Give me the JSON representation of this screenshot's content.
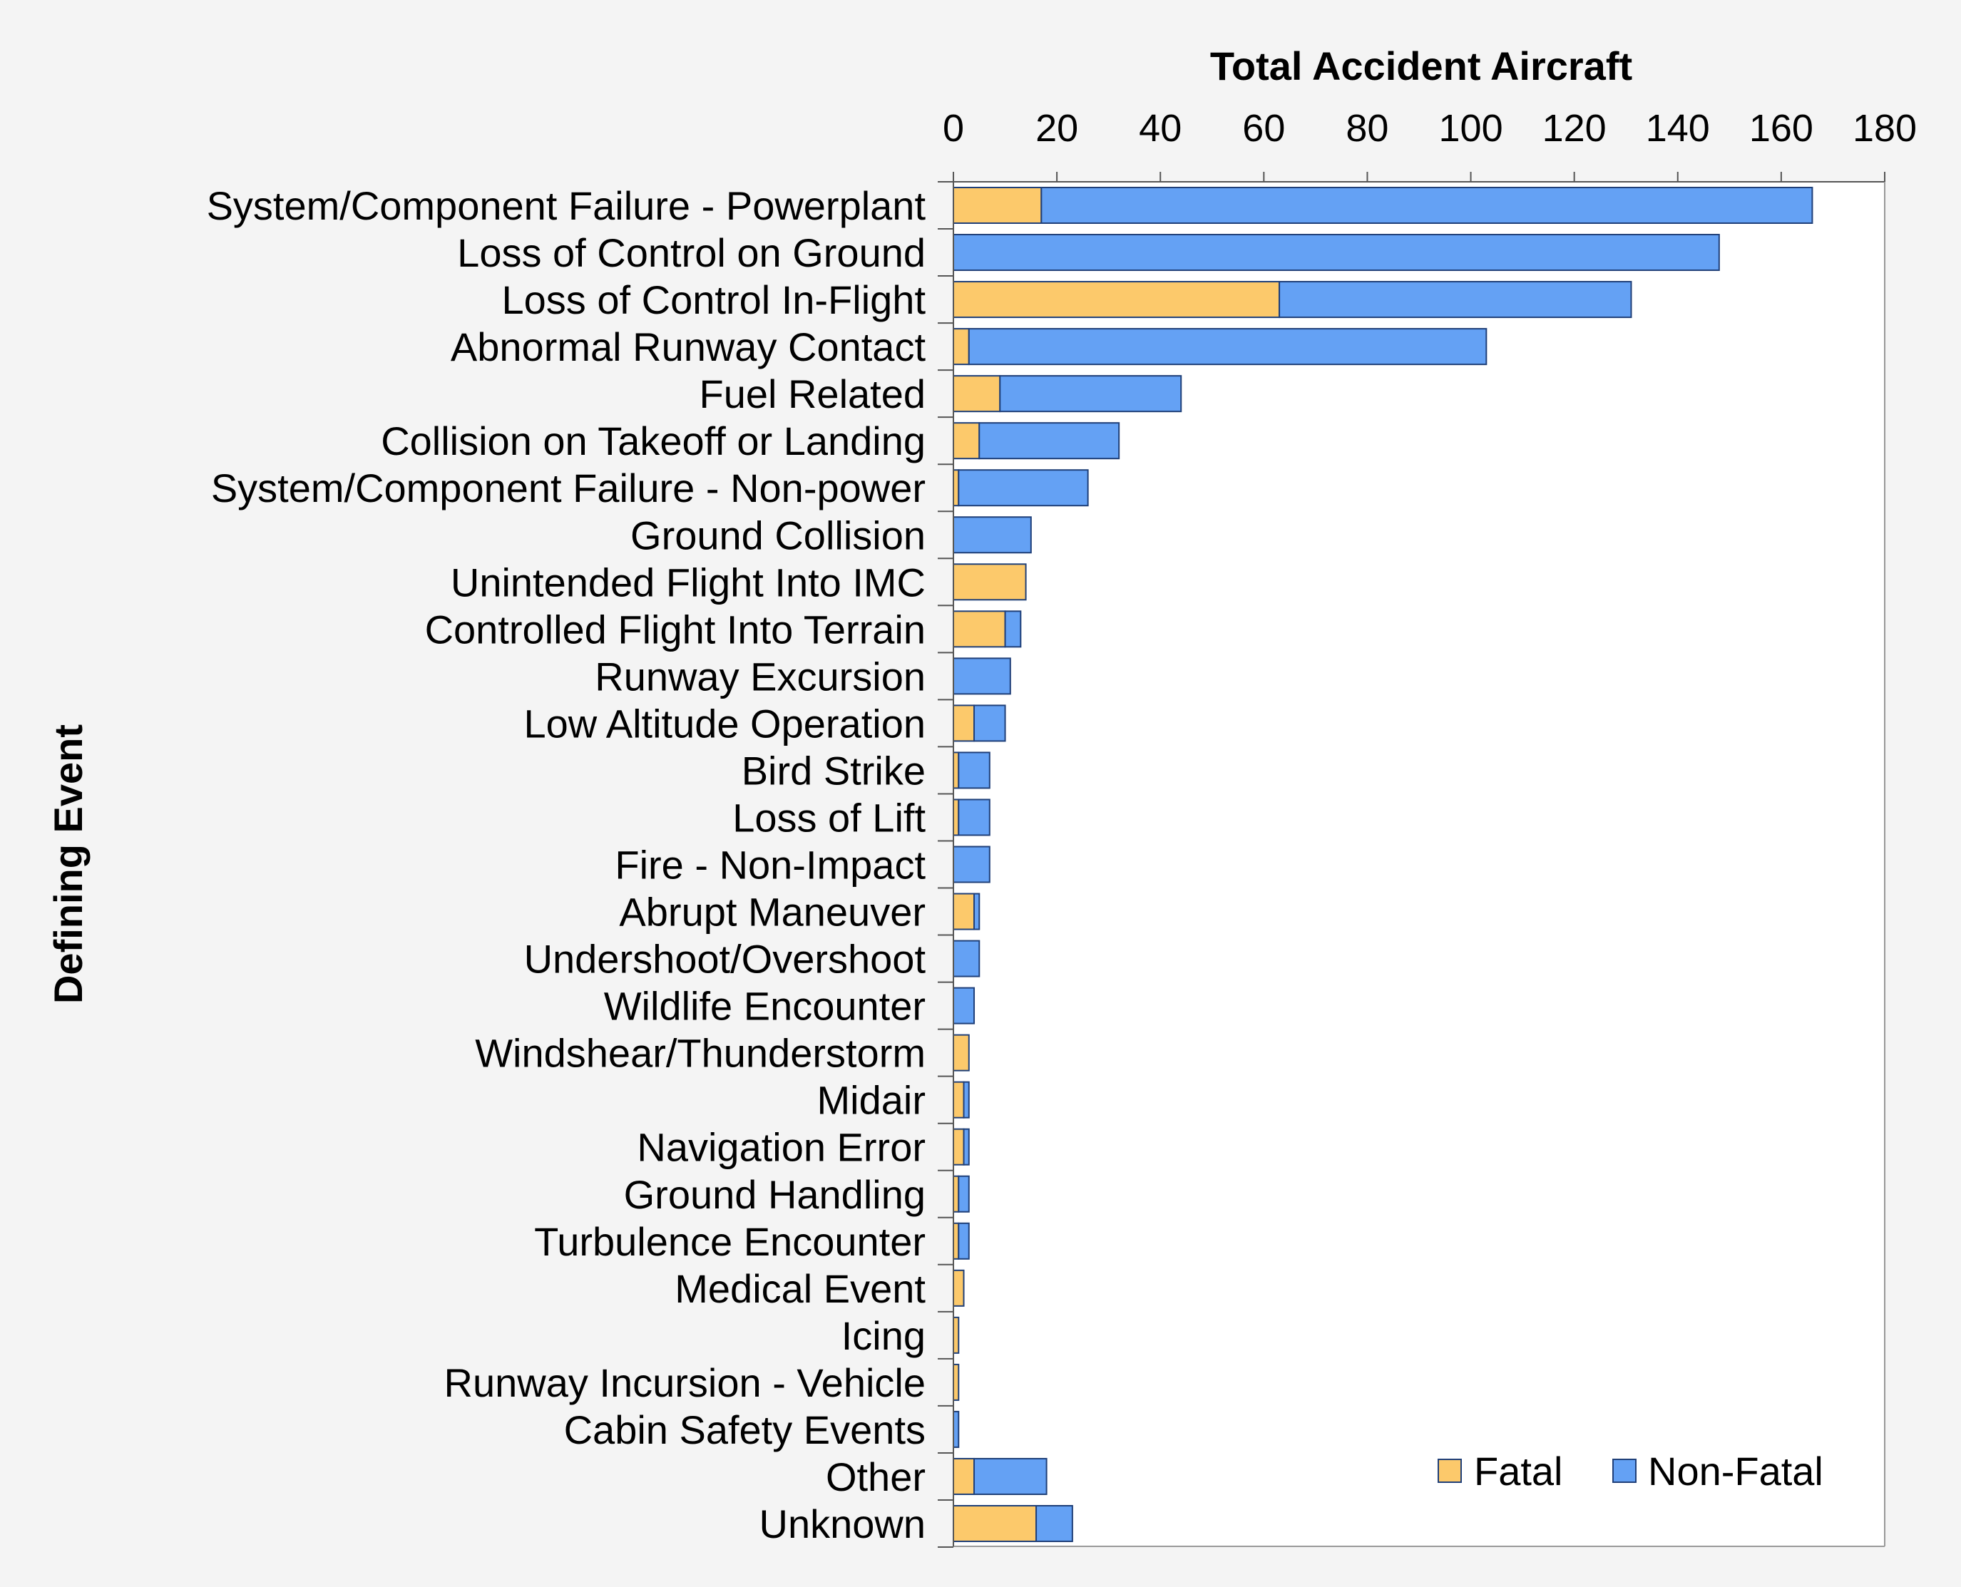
{
  "chart_data": {
    "type": "bar",
    "orientation": "horizontal",
    "stacked": true,
    "title": "",
    "xlabel": "Total Accident Aircraft",
    "ylabel": "Defining Event",
    "xlim": [
      0,
      180
    ],
    "xticks": [
      0,
      20,
      40,
      60,
      80,
      100,
      120,
      140,
      160,
      180
    ],
    "x_axis_position": "top",
    "grid": false,
    "legend_position": "bottom-right",
    "categories": [
      "System/Component Failure - Powerplant",
      "Loss of Control on Ground",
      "Loss of Control In-Flight",
      "Abnormal Runway Contact",
      "Fuel Related",
      "Collision on Takeoff or Landing",
      "System/Component Failure - Non-power",
      "Ground Collision",
      "Unintended Flight Into IMC",
      "Controlled Flight Into Terrain",
      "Runway Excursion",
      "Low Altitude Operation",
      "Bird Strike",
      "Loss of Lift",
      "Fire - Non-Impact",
      "Abrupt Maneuver",
      "Undershoot/Overshoot",
      "Wildlife Encounter",
      "Windshear/Thunderstorm",
      "Midair",
      "Navigation Error",
      "Ground Handling",
      "Turbulence Encounter",
      "Medical Event",
      "Icing",
      "Runway Incursion - Vehicle",
      "Cabin Safety Events",
      "Other",
      "Unknown"
    ],
    "series": [
      {
        "name": "Fatal",
        "color": "#fcc96b",
        "values": [
          17,
          0,
          63,
          3,
          9,
          5,
          1,
          0,
          14,
          10,
          0,
          4,
          1,
          1,
          0,
          4,
          0,
          0,
          3,
          2,
          2,
          1,
          1,
          2,
          1,
          1,
          0,
          4,
          16
        ]
      },
      {
        "name": "Non-Fatal",
        "color": "#64a1f4",
        "values": [
          149,
          148,
          68,
          100,
          35,
          27,
          25,
          15,
          0,
          3,
          11,
          6,
          6,
          6,
          7,
          1,
          5,
          4,
          0,
          1,
          1,
          2,
          2,
          0,
          0,
          0,
          1,
          14,
          7
        ]
      }
    ]
  }
}
